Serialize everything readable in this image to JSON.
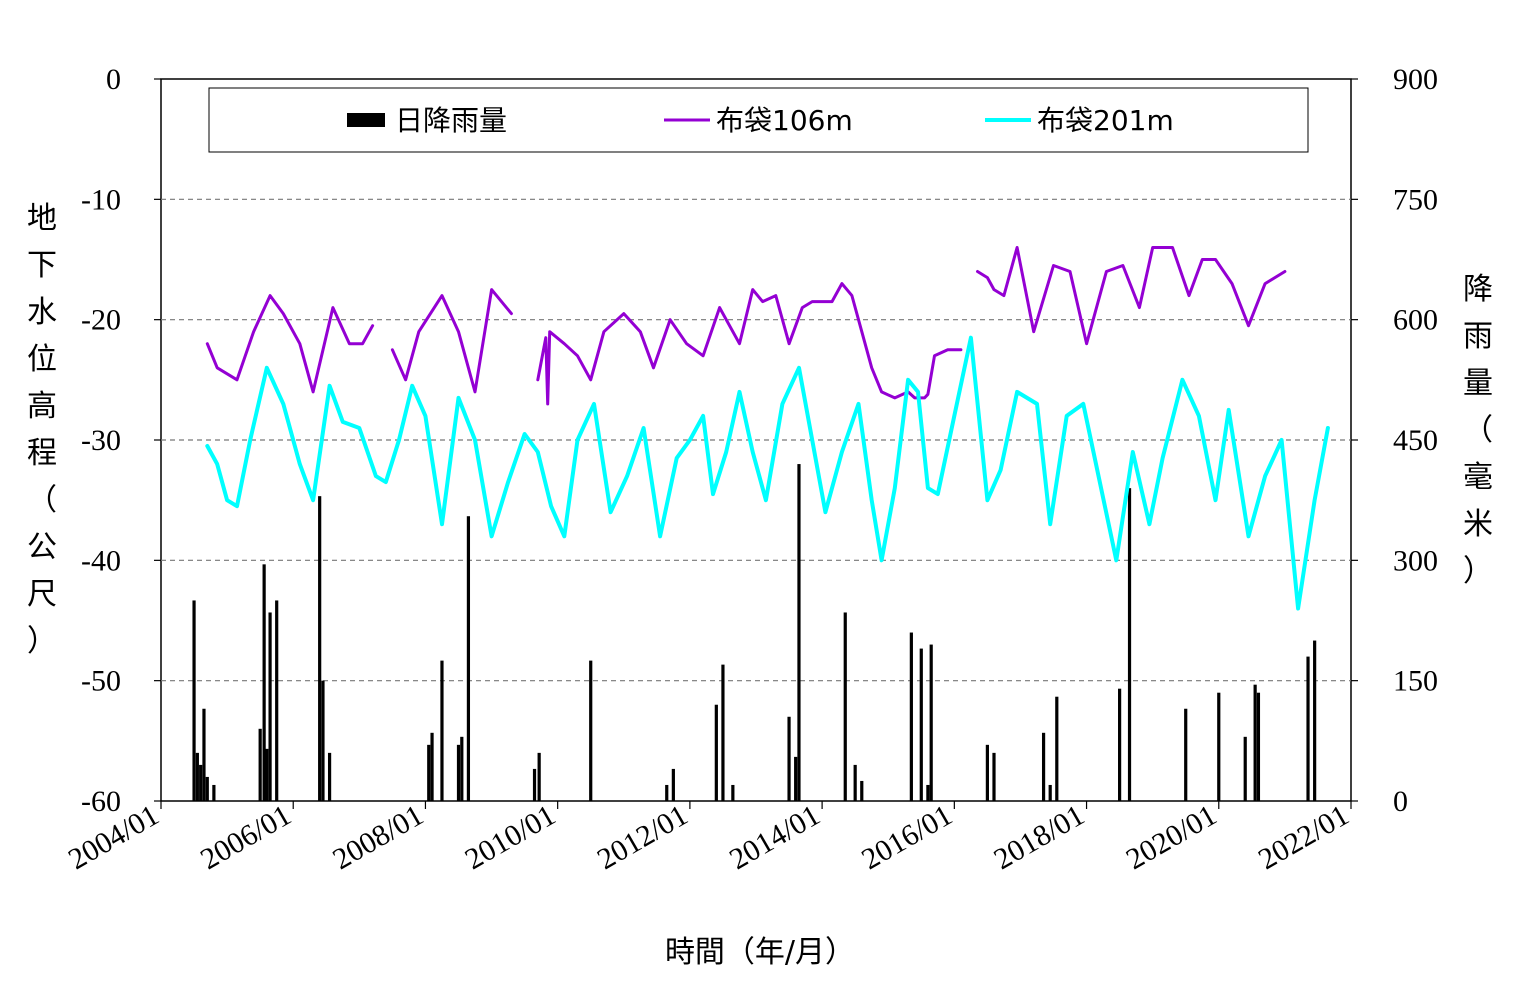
{
  "chart_data": {
    "type": "line",
    "xlabel": "時間（年/月）",
    "ylabel_left": "地下水位高程（公尺）",
    "ylabel_right": "降雨量（毫米）",
    "x_ticks": [
      "2004/01",
      "2006/01",
      "2008/01",
      "2010/01",
      "2012/01",
      "2014/01",
      "2016/01",
      "2018/01",
      "2020/01",
      "2022/01"
    ],
    "xlim": [
      2004.0,
      2022.0
    ],
    "ylim_left": [
      -60,
      0
    ],
    "y_ticks_left": [
      "0",
      "-10",
      "-20",
      "-30",
      "-40",
      "-50",
      "-60"
    ],
    "ylim_right": [
      0,
      900
    ],
    "y_ticks_right": [
      "900",
      "750",
      "600",
      "450",
      "300",
      "150",
      "0"
    ],
    "grid": "horizontal dashed",
    "legend_position": "top",
    "legend": [
      "日降雨量",
      "布袋106m",
      "布袋201m"
    ],
    "series": [
      {
        "name": "日降雨量",
        "type": "bar",
        "axis": "right",
        "color": "#000000",
        "x": [
          2004.5,
          2004.55,
          2004.6,
          2004.65,
          2004.7,
          2004.8,
          2005.5,
          2005.56,
          2005.6,
          2005.65,
          2005.75,
          2006.4,
          2006.45,
          2006.55,
          2008.05,
          2008.1,
          2008.25,
          2008.5,
          2008.55,
          2008.65,
          2009.65,
          2009.72,
          2010.5,
          2011.65,
          2011.75,
          2012.4,
          2012.5,
          2012.65,
          2013.5,
          2013.6,
          2013.65,
          2014.35,
          2014.5,
          2014.6,
          2015.35,
          2015.5,
          2015.6,
          2015.65,
          2016.5,
          2016.6,
          2017.35,
          2017.45,
          2017.55,
          2018.5,
          2018.65,
          2019.5,
          2020.0,
          2020.4,
          2020.55,
          2020.6,
          2021.35,
          2021.45
        ],
        "values": [
          250,
          60,
          45,
          115,
          30,
          20,
          90,
          295,
          65,
          235,
          250,
          380,
          150,
          60,
          70,
          85,
          175,
          70,
          80,
          355,
          40,
          60,
          175,
          20,
          40,
          120,
          170,
          20,
          105,
          55,
          420,
          235,
          45,
          25,
          210,
          190,
          20,
          195,
          70,
          60,
          85,
          20,
          130,
          140,
          390,
          115,
          135,
          80,
          145,
          135,
          180,
          200
        ]
      },
      {
        "name": "布袋106m",
        "type": "line",
        "axis": "left",
        "color": "#9400D3",
        "x": [
          2004.7,
          2004.85,
          2005.0,
          2005.15,
          2005.4,
          2005.65,
          2005.85,
          2006.1,
          2006.3,
          2006.6,
          2006.85,
          2007.05,
          2007.2,
          2007.3,
          2007.5,
          2007.7,
          2007.9,
          2008.25,
          2008.5,
          2008.75,
          2009.0,
          2009.3,
          2009.5,
          2009.7,
          2009.82,
          2009.85,
          2009.88,
          2010.1,
          2010.3,
          2010.5,
          2010.7,
          2011.0,
          2011.25,
          2011.45,
          2011.7,
          2011.95,
          2012.2,
          2012.45,
          2012.75,
          2012.95,
          2013.1,
          2013.3,
          2013.5,
          2013.7,
          2013.85,
          2014.15,
          2014.3,
          2014.45,
          2014.6,
          2014.75,
          2014.9,
          2015.1,
          2015.3,
          2015.4,
          2015.55,
          2015.6,
          2015.7,
          2015.9,
          2016.1,
          2016.25,
          2016.35,
          2016.5,
          2016.6,
          2016.75,
          2016.95,
          2017.2,
          2017.5,
          2017.75,
          2018.0,
          2018.3,
          2018.55,
          2018.8,
          2019.0,
          2019.3,
          2019.55,
          2019.75,
          2019.95,
          2020.2,
          2020.45,
          2020.7,
          2021.0,
          2021.25,
          2021.5,
          2021.75,
          2021.9,
          2022.0
        ],
        "values": [
          -22,
          -24,
          -24.5,
          -25,
          -21,
          -18,
          -19.5,
          -22,
          -26,
          -19,
          -22,
          -22,
          -20.5,
          null,
          -22.5,
          -25,
          -21,
          -18,
          -21,
          -26,
          -17.5,
          -19.5,
          null,
          -25,
          -21.5,
          -27,
          -21,
          -22,
          -23,
          -25,
          -21,
          -19.5,
          -21,
          -24,
          -20,
          -22,
          -23,
          -19,
          -22,
          -17.5,
          -18.5,
          -18,
          -22,
          -19,
          -18.5,
          -18.5,
          -17,
          -18,
          -21,
          -24,
          -26,
          -26.5,
          -26,
          -26.5,
          -26.5,
          -26.2,
          -23,
          -22.5,
          -22.5,
          null,
          -16,
          -16.5,
          -17.5,
          -18,
          -14,
          -21,
          -15.5,
          -16,
          -22,
          -16,
          -15.5,
          -19,
          -14,
          -14,
          -18,
          -15,
          -15,
          -17,
          -20.5,
          -17,
          -16,
          null,
          null,
          null,
          null,
          null
        ]
      },
      {
        "name": "布袋201m",
        "type": "line",
        "axis": "left",
        "color": "#00FFFF",
        "x": [
          2004.7,
          2004.85,
          2005.0,
          2005.15,
          2005.35,
          2005.6,
          2005.85,
          2006.1,
          2006.3,
          2006.55,
          2006.75,
          2007.0,
          2007.25,
          2007.4,
          2007.6,
          2007.8,
          2008.0,
          2008.25,
          2008.5,
          2008.75,
          2009.0,
          2009.25,
          2009.5,
          2009.7,
          2009.9,
          2010.1,
          2010.3,
          2010.55,
          2010.8,
          2011.05,
          2011.3,
          2011.55,
          2011.8,
          2012.0,
          2012.2,
          2012.35,
          2012.55,
          2012.75,
          2012.95,
          2013.15,
          2013.4,
          2013.65,
          2013.85,
          2014.05,
          2014.3,
          2014.55,
          2014.75,
          2014.9,
          2015.1,
          2015.3,
          2015.45,
          2015.6,
          2015.75,
          2016.0,
          2016.25,
          2016.5,
          2016.7,
          2016.95,
          2017.25,
          2017.45,
          2017.7,
          2017.95,
          2018.2,
          2018.45,
          2018.7,
          2018.95,
          2019.15,
          2019.45,
          2019.7,
          2019.95,
          2020.15,
          2020.45,
          2020.7,
          2020.95,
          2021.2,
          2021.45,
          2021.65,
          2021.85,
          2022.0
        ],
        "values": [
          -30.5,
          -32,
          -35,
          -35.5,
          -30,
          -24,
          -27,
          -32,
          -35,
          -25.5,
          -28.5,
          -29,
          -33,
          -33.5,
          -30,
          -25.5,
          -28,
          -37,
          -26.5,
          -30,
          -38,
          -33.5,
          -29.5,
          -31,
          -35.5,
          -38,
          -30,
          -27,
          -36,
          -33,
          -29,
          -38,
          -31.5,
          -30,
          -28,
          -34.5,
          -31,
          -26,
          -31,
          -35,
          -27,
          -24,
          -30,
          -36,
          -31,
          -27,
          -35,
          -40,
          -34,
          -25,
          -26,
          -34,
          -34.5,
          -28,
          -21.5,
          -35,
          -32.5,
          -26,
          -27,
          -37,
          -28,
          -27,
          -33.5,
          -40,
          -31,
          -37,
          -31.5,
          -25,
          -28,
          -35,
          -27.5,
          -38,
          -33,
          -30,
          -44,
          -35,
          -29,
          null,
          null
        ]
      }
    ]
  }
}
